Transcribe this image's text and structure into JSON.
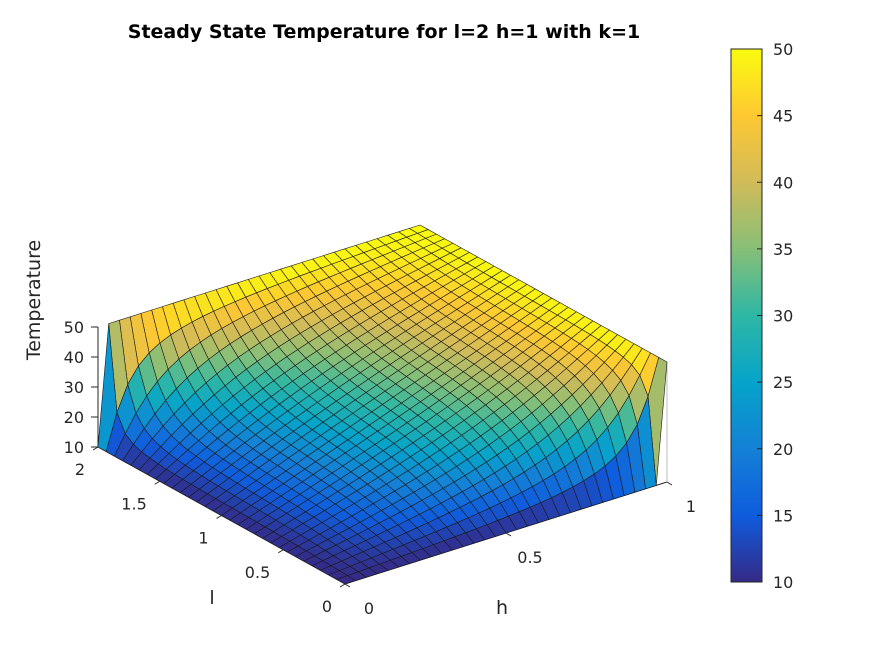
{
  "chart_data": {
    "type": "surface",
    "title": "Steady State Temperature for l=2 h=1 with k=1",
    "xlabel": "h",
    "ylabel": "l",
    "zlabel": "Temperature",
    "x_range": [
      0,
      1
    ],
    "y_range": [
      0,
      2
    ],
    "z_range": [
      10,
      50
    ],
    "x_ticks": [
      "0",
      "0.5",
      "1"
    ],
    "y_ticks": [
      "0",
      "0.5",
      "1",
      "1.5",
      "2"
    ],
    "z_ticks": [
      "10",
      "20",
      "30",
      "40",
      "50"
    ],
    "colorbar": {
      "range": [
        10,
        50
      ],
      "ticks": [
        "10",
        "15",
        "20",
        "25",
        "30",
        "35",
        "40",
        "45",
        "50"
      ],
      "colormap": "parula"
    },
    "grid_resolution": [
      30,
      30
    ],
    "boundary_values": {
      "h=0": 10,
      "h=1": 50,
      "l=0": 10,
      "l=2": 50
    }
  }
}
